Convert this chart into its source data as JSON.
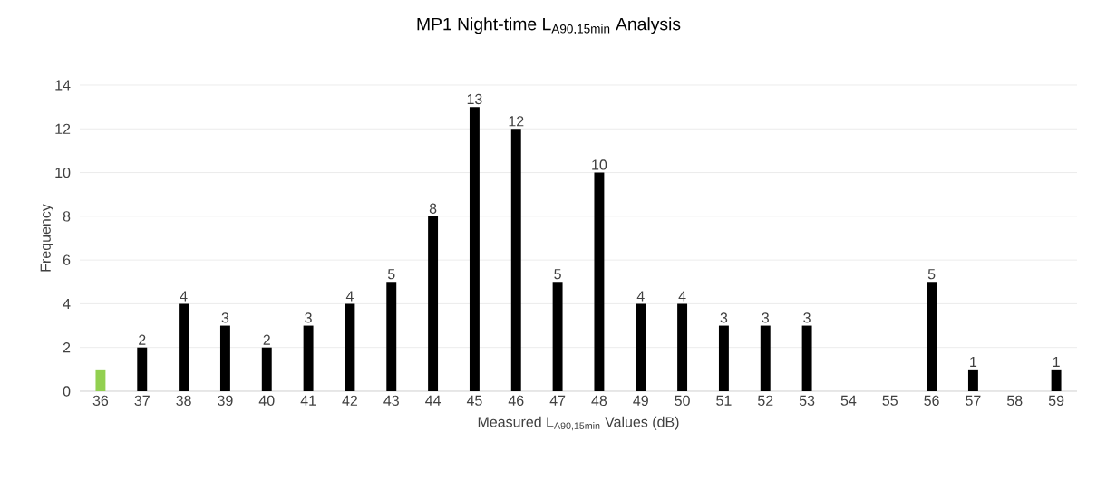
{
  "chart_data": {
    "type": "bar",
    "title": "MP1 Night-time L$_{A90,15min}$ Analysis",
    "xlabel": "Measured L$_{A90,15min}$ Values (dB)",
    "ylabel": "Frequency",
    "categories": [
      "36",
      "37",
      "38",
      "39",
      "40",
      "41",
      "42",
      "43",
      "44",
      "45",
      "46",
      "47",
      "48",
      "49",
      "50",
      "51",
      "52",
      "53",
      "54",
      "55",
      "56",
      "57",
      "58",
      "59"
    ],
    "values": [
      1,
      2,
      4,
      3,
      2,
      3,
      4,
      5,
      8,
      13,
      12,
      5,
      10,
      4,
      4,
      3,
      3,
      3,
      0,
      0,
      5,
      1,
      0,
      1
    ],
    "value_labels": [
      null,
      "2",
      "4",
      "3",
      "2",
      "3",
      "4",
      "5",
      "8",
      "13",
      "12",
      "5",
      "10",
      "4",
      "4",
      "3",
      "3",
      "3",
      null,
      null,
      "5",
      "1",
      null,
      "1"
    ],
    "colors": [
      "#92d050",
      "#000000",
      "#000000",
      "#000000",
      "#000000",
      "#000000",
      "#000000",
      "#000000",
      "#000000",
      "#000000",
      "#000000",
      "#000000",
      "#000000",
      "#000000",
      "#000000",
      "#000000",
      "#000000",
      "#000000",
      "#000000",
      "#000000",
      "#000000",
      "#000000",
      "#000000",
      "#000000"
    ],
    "ylim": [
      0,
      14
    ],
    "yticks": [
      0,
      2,
      4,
      6,
      8,
      10,
      12,
      14
    ],
    "grid": "y"
  }
}
